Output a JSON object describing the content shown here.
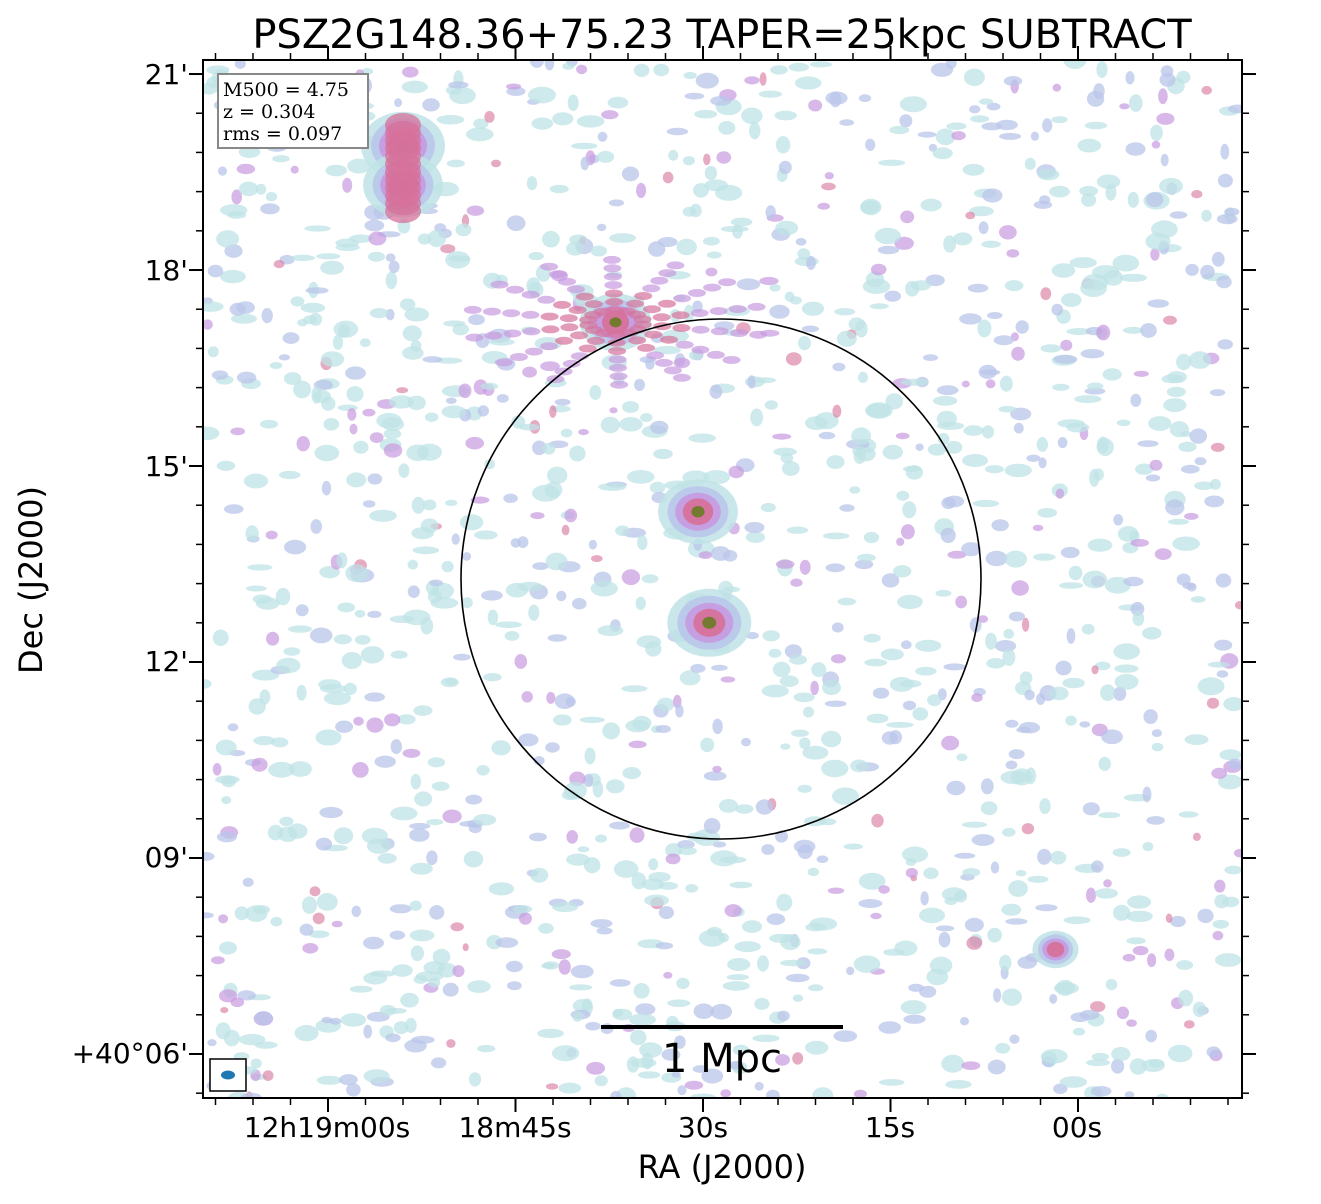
{
  "chart_data": {
    "type": "heatmap",
    "title": "PSZ2G148.36+75.23 TAPER=25kpc SUBTRACT",
    "xlabel": "RA (J2000)",
    "ylabel": "Dec (J2000)",
    "x_ticks": [
      "12h19m00s",
      "18m45s",
      "30s",
      "15s",
      "00s"
    ],
    "y_ticks": [
      "21'",
      "18'",
      "15'",
      "12'",
      "09'",
      "+40°06'"
    ],
    "info": {
      "m500": "M500 = 4.75",
      "z": "z = 0.304",
      "rms": "rms = 0.097"
    },
    "scalebar_label": "1 Mpc",
    "colormap": [
      "#bfe3e6",
      "#b9c6ea",
      "#c79ae0",
      "#d6729b",
      "#c95f80",
      "#6f7a2a"
    ],
    "sources": [
      {
        "name": "north-compact-source",
        "ra_s": 54.0,
        "dec_arcmin": 19.9,
        "peak": 1.0
      },
      {
        "name": "north-compact-source-2",
        "ra_s": 54.0,
        "dec_arcmin": 19.3,
        "peak": 0.95
      },
      {
        "name": "central-source-upper",
        "ra_s": 30.4,
        "dec_arcmin": 14.3,
        "peak": 0.95
      },
      {
        "name": "central-source-lower",
        "ra_s": 29.5,
        "dec_arcmin": 12.6,
        "peak": 1.0
      },
      {
        "name": "artifact-source",
        "ra_s": 37.0,
        "dec_arcmin": 17.2,
        "peak": 0.85
      },
      {
        "name": "southeast-source",
        "ra_s": 1.8,
        "dec_arcmin": 7.6,
        "peak": 0.55
      }
    ]
  }
}
